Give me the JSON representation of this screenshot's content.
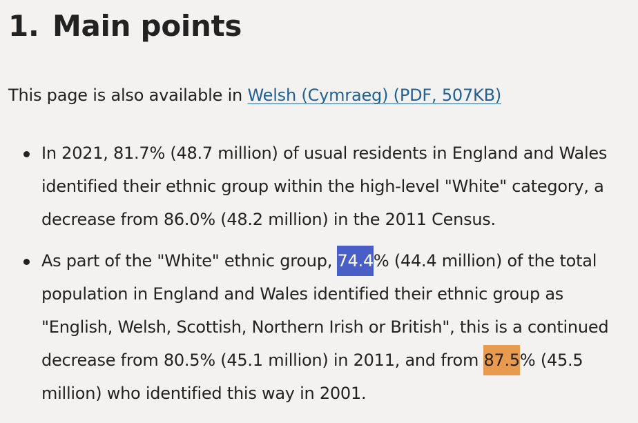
{
  "section": {
    "number": "1.",
    "title": "Main points"
  },
  "availability": {
    "prefix": "This page is also available in ",
    "link_text": "Welsh (Cymraeg) (PDF, 507KB)"
  },
  "points": [
    {
      "text": "In 2021, 81.7% (48.7 million) of usual residents in England and Wales identified their ethnic group within the high-level \"White\" category, a decrease from 86.0% (48.2 million) in the 2011 Census."
    },
    {
      "before": "As part of the \"White\" ethnic group, ",
      "highlight_1": "74.4",
      "middle": "% (44.4 million) of the total population in England and Wales identified their ethnic group as \"English, Welsh, Scottish, Northern Irish or British\", this is a continued decrease from 80.5% (45.1 million) in 2011, and from ",
      "highlight_2": "87.5",
      "after": "% (45.5 million) who identified this way in 2001."
    }
  ],
  "colors": {
    "page_background": "#f3f2f1",
    "text": "#222222",
    "link": "#206095",
    "highlight_blue": "#4a5fc6",
    "highlight_orange": "#e89a4f"
  }
}
